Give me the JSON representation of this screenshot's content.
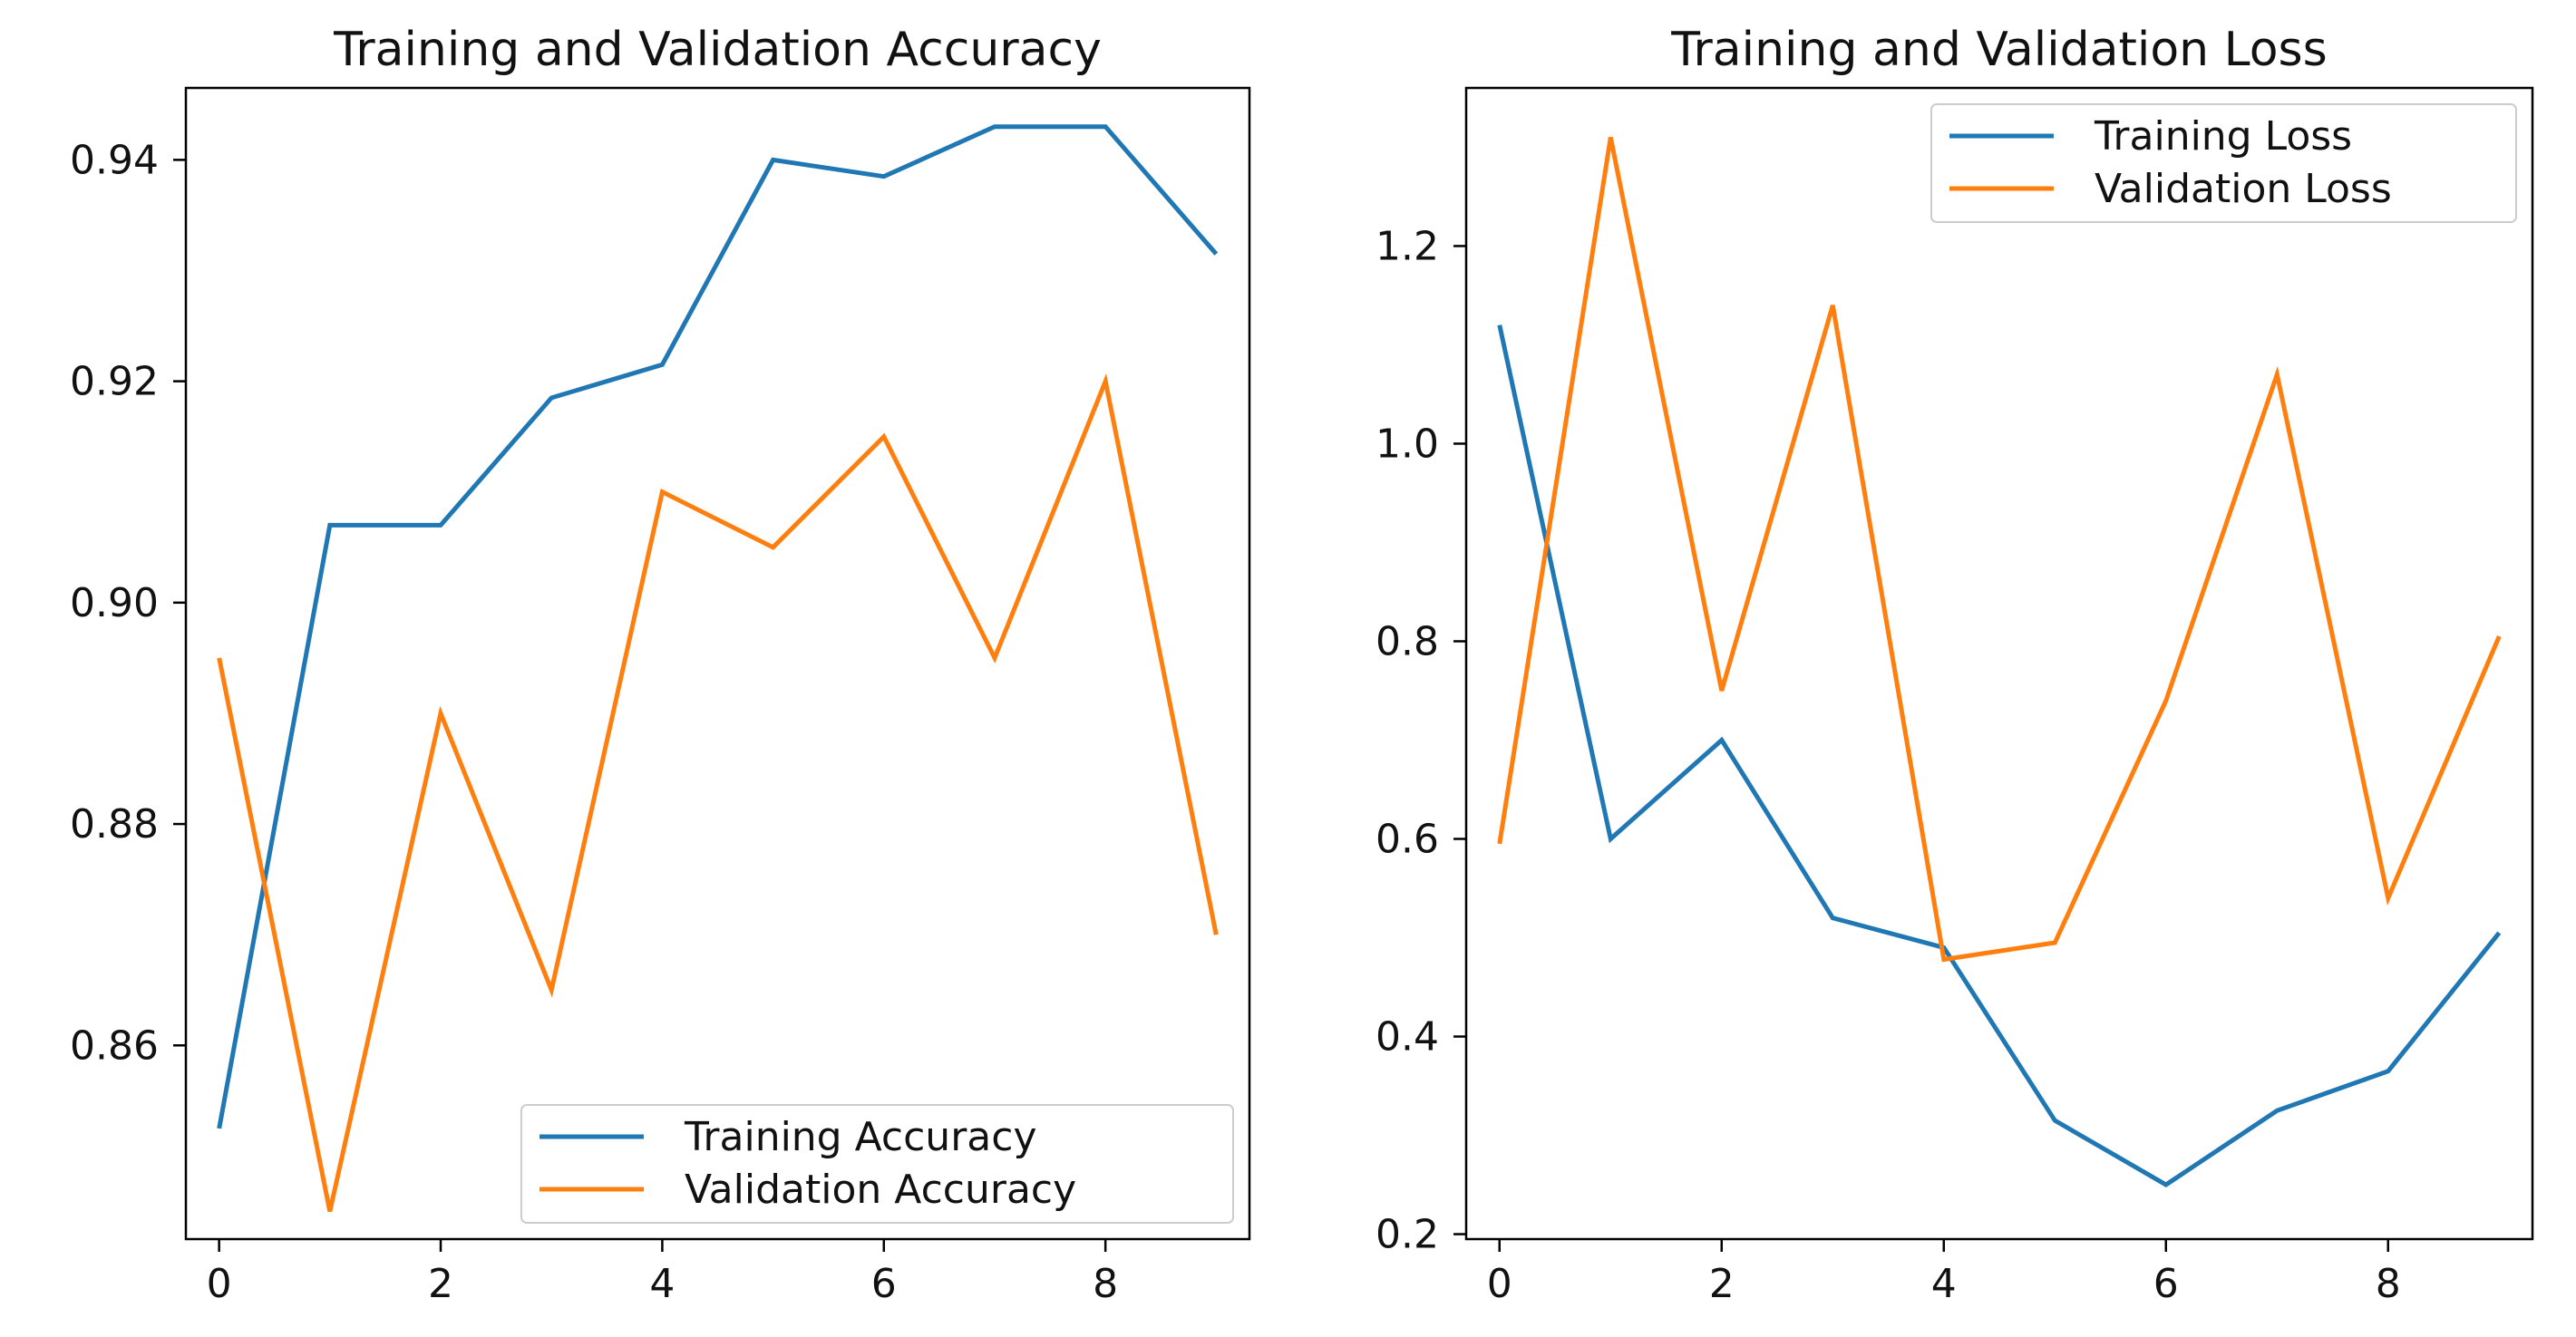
{
  "chart_data": [
    {
      "type": "line",
      "title": "Training and Validation Accuracy",
      "xlabel": "",
      "ylabel": "",
      "x": [
        0,
        1,
        2,
        3,
        4,
        5,
        6,
        7,
        8,
        9
      ],
      "xlim": [
        -0.3,
        9.3
      ],
      "ylim": [
        0.8425,
        0.9465
      ],
      "xticks": [
        0,
        2,
        4,
        6,
        8
      ],
      "yticks": [
        0.86,
        0.88,
        0.9,
        0.92,
        0.94
      ],
      "ytick_labels": [
        "0.86",
        "0.88",
        "0.90",
        "0.92",
        "0.94"
      ],
      "grid": false,
      "legend_position": "lower-right",
      "series": [
        {
          "name": "Training Accuracy",
          "color": "#1f77b4",
          "values": [
            0.8525,
            0.907,
            0.907,
            0.9185,
            0.9215,
            0.94,
            0.9385,
            0.943,
            0.943,
            0.9315
          ]
        },
        {
          "name": "Validation Accuracy",
          "color": "#ff7f0e",
          "values": [
            0.895,
            0.845,
            0.89,
            0.865,
            0.91,
            0.905,
            0.915,
            0.895,
            0.92,
            0.87
          ]
        }
      ]
    },
    {
      "type": "line",
      "title": "Training and Validation Loss",
      "xlabel": "",
      "ylabel": "",
      "x": [
        0,
        1,
        2,
        3,
        4,
        5,
        6,
        7,
        8,
        9
      ],
      "xlim": [
        -0.3,
        9.3
      ],
      "ylim": [
        0.195,
        1.36
      ],
      "xticks": [
        0,
        2,
        4,
        6,
        8
      ],
      "yticks": [
        0.2,
        0.4,
        0.6,
        0.8,
        1.0,
        1.2
      ],
      "ytick_labels": [
        "0.2",
        "0.4",
        "0.6",
        "0.8",
        "1.0",
        "1.2"
      ],
      "grid": false,
      "legend_position": "upper-right",
      "series": [
        {
          "name": "Training Loss",
          "color": "#1f77b4",
          "values": [
            1.12,
            0.6,
            0.7,
            0.52,
            0.49,
            0.315,
            0.25,
            0.325,
            0.365,
            0.505
          ]
        },
        {
          "name": "Validation Loss",
          "color": "#ff7f0e",
          "values": [
            0.595,
            1.31,
            0.75,
            1.14,
            0.478,
            0.495,
            0.74,
            1.07,
            0.54,
            0.805
          ]
        }
      ]
    }
  ]
}
